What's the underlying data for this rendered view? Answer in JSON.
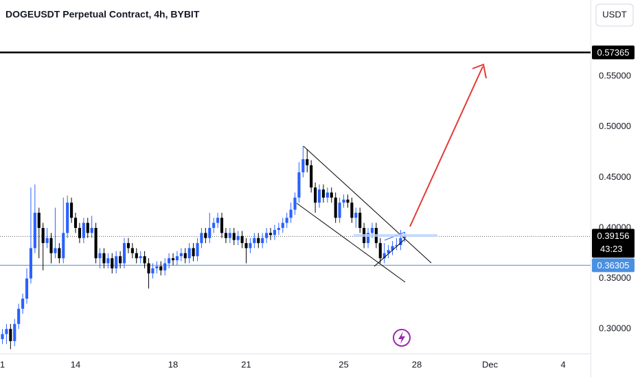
{
  "chart_data": {
    "type": "candlestick",
    "title": "DOGEUSDT Perpetual Contract, 4h, BYBIT",
    "currency": "USDT",
    "up_color": "#2962ff",
    "down_color": "#000000",
    "x": [
      0,
      4,
      8,
      12,
      16,
      20,
      24,
      28,
      32,
      36,
      40,
      44,
      48,
      52,
      56,
      60,
      64,
      68,
      72,
      76,
      80,
      84,
      88,
      92,
      96,
      100,
      104,
      108,
      112,
      116,
      120,
      124,
      128,
      132,
      136,
      140,
      144,
      148,
      152,
      156,
      160,
      164,
      168,
      172,
      176,
      180,
      184,
      188,
      192,
      196,
      200,
      204,
      208,
      212,
      216,
      220,
      224,
      228,
      232,
      236,
      240,
      244,
      248,
      252,
      256,
      260,
      264,
      268,
      272,
      276,
      280,
      284,
      288,
      292,
      296,
      300,
      304,
      308,
      312,
      316,
      320,
      324,
      328,
      332,
      336,
      340,
      344,
      348,
      352,
      356,
      360,
      364,
      368,
      372,
      376,
      380,
      384,
      388,
      392,
      396
    ],
    "open": [
      0.29,
      0.295,
      0.3,
      0.288,
      0.305,
      0.32,
      0.33,
      0.35,
      0.38,
      0.415,
      0.4,
      0.385,
      0.39,
      0.375,
      0.38,
      0.37,
      0.395,
      0.425,
      0.41,
      0.4,
      0.39,
      0.405,
      0.395,
      0.4,
      0.37,
      0.375,
      0.365,
      0.37,
      0.36,
      0.372,
      0.365,
      0.385,
      0.38,
      0.375,
      0.37,
      0.372,
      0.365,
      0.355,
      0.36,
      0.362,
      0.358,
      0.365,
      0.37,
      0.368,
      0.372,
      0.375,
      0.37,
      0.38,
      0.372,
      0.385,
      0.395,
      0.39,
      0.4,
      0.405,
      0.41,
      0.395,
      0.39,
      0.395,
      0.388,
      0.392,
      0.385,
      0.38,
      0.385,
      0.39,
      0.385,
      0.39,
      0.395,
      0.393,
      0.398,
      0.4,
      0.405,
      0.41,
      0.418,
      0.43,
      0.455,
      0.468,
      0.462,
      0.44,
      0.425,
      0.438,
      0.43,
      0.435,
      0.43,
      0.41,
      0.425,
      0.428,
      0.425,
      0.41,
      0.415,
      0.4,
      0.385,
      0.395,
      0.4,
      0.385,
      0.37,
      0.375,
      0.378,
      0.382,
      0.383,
      0.39
    ],
    "high": [
      0.3,
      0.305,
      0.305,
      0.31,
      0.325,
      0.335,
      0.36,
      0.44,
      0.443,
      0.42,
      0.405,
      0.4,
      0.395,
      0.42,
      0.385,
      0.43,
      0.432,
      0.43,
      0.415,
      0.405,
      0.41,
      0.41,
      0.412,
      0.405,
      0.38,
      0.38,
      0.375,
      0.375,
      0.377,
      0.377,
      0.39,
      0.39,
      0.385,
      0.38,
      0.377,
      0.377,
      0.37,
      0.365,
      0.367,
      0.367,
      0.37,
      0.375,
      0.375,
      0.377,
      0.38,
      0.38,
      0.385,
      0.385,
      0.39,
      0.4,
      0.4,
      0.415,
      0.41,
      0.415,
      0.415,
      0.4,
      0.4,
      0.4,
      0.397,
      0.397,
      0.39,
      0.39,
      0.395,
      0.395,
      0.395,
      0.4,
      0.4,
      0.403,
      0.405,
      0.41,
      0.415,
      0.425,
      0.435,
      0.465,
      0.481,
      0.478,
      0.467,
      0.445,
      0.443,
      0.443,
      0.44,
      0.44,
      0.435,
      0.43,
      0.433,
      0.433,
      0.43,
      0.42,
      0.42,
      0.405,
      0.4,
      0.405,
      0.405,
      0.39,
      0.385,
      0.383,
      0.387,
      0.39,
      0.398,
      0.396
    ],
    "low": [
      0.285,
      0.285,
      0.28,
      0.283,
      0.3,
      0.315,
      0.325,
      0.345,
      0.375,
      0.37,
      0.358,
      0.38,
      0.365,
      0.37,
      0.365,
      0.365,
      0.39,
      0.405,
      0.395,
      0.385,
      0.385,
      0.39,
      0.39,
      0.365,
      0.36,
      0.36,
      0.36,
      0.355,
      0.355,
      0.36,
      0.36,
      0.375,
      0.37,
      0.365,
      0.365,
      0.36,
      0.34,
      0.35,
      0.355,
      0.353,
      0.353,
      0.36,
      0.363,
      0.363,
      0.367,
      0.365,
      0.365,
      0.367,
      0.367,
      0.38,
      0.385,
      0.385,
      0.395,
      0.4,
      0.39,
      0.385,
      0.385,
      0.383,
      0.383,
      0.38,
      0.365,
      0.375,
      0.38,
      0.38,
      0.38,
      0.385,
      0.388,
      0.388,
      0.393,
      0.395,
      0.4,
      0.405,
      0.413,
      0.425,
      0.45,
      0.455,
      0.435,
      0.415,
      0.42,
      0.425,
      0.425,
      0.425,
      0.405,
      0.405,
      0.42,
      0.42,
      0.405,
      0.4,
      0.395,
      0.38,
      0.38,
      0.39,
      0.38,
      0.365,
      0.365,
      0.37,
      0.373,
      0.378,
      0.378,
      0.386
    ],
    "close": [
      0.295,
      0.3,
      0.288,
      0.305,
      0.32,
      0.33,
      0.35,
      0.38,
      0.415,
      0.4,
      0.385,
      0.39,
      0.375,
      0.38,
      0.37,
      0.395,
      0.425,
      0.41,
      0.4,
      0.39,
      0.405,
      0.395,
      0.4,
      0.37,
      0.375,
      0.365,
      0.37,
      0.36,
      0.372,
      0.365,
      0.385,
      0.38,
      0.375,
      0.37,
      0.372,
      0.365,
      0.355,
      0.36,
      0.362,
      0.358,
      0.365,
      0.37,
      0.368,
      0.372,
      0.375,
      0.37,
      0.38,
      0.372,
      0.385,
      0.395,
      0.39,
      0.4,
      0.405,
      0.41,
      0.395,
      0.39,
      0.395,
      0.388,
      0.392,
      0.385,
      0.38,
      0.385,
      0.39,
      0.385,
      0.39,
      0.395,
      0.393,
      0.398,
      0.4,
      0.405,
      0.41,
      0.418,
      0.43,
      0.455,
      0.468,
      0.462,
      0.44,
      0.425,
      0.438,
      0.43,
      0.435,
      0.43,
      0.41,
      0.425,
      0.428,
      0.425,
      0.41,
      0.415,
      0.4,
      0.385,
      0.395,
      0.4,
      0.385,
      0.37,
      0.375,
      0.378,
      0.382,
      0.383,
      0.39,
      0.3916
    ],
    "xlim": [
      -2.37,
      579
    ],
    "ylim": [
      0.2757,
      0.6255
    ],
    "xticks": [
      {
        "value": 0,
        "label": "1"
      },
      {
        "value": 72,
        "label": "14"
      },
      {
        "value": 168,
        "label": "18"
      },
      {
        "value": 240,
        "label": "21"
      },
      {
        "value": 336,
        "label": "25"
      },
      {
        "value": 408,
        "label": "28"
      },
      {
        "value": 480,
        "label": "Dec"
      },
      {
        "value": 552,
        "label": "4"
      }
    ],
    "yticks": [
      {
        "value": 0.3,
        "label": "0.30000"
      },
      {
        "value": 0.35,
        "label": "0.35000"
      },
      {
        "value": 0.4,
        "label": "0.40000"
      },
      {
        "value": 0.45,
        "label": "0.45000"
      },
      {
        "value": 0.5,
        "label": "0.50000"
      },
      {
        "value": 0.55,
        "label": "0.55000"
      }
    ],
    "price_lines": [
      {
        "value": 0.57365,
        "color": "#000000"
      },
      {
        "value": 0.36305,
        "color": "#4a90e2"
      }
    ],
    "current_price": {
      "value": 0.39156,
      "countdown": "43:23"
    }
  }
}
